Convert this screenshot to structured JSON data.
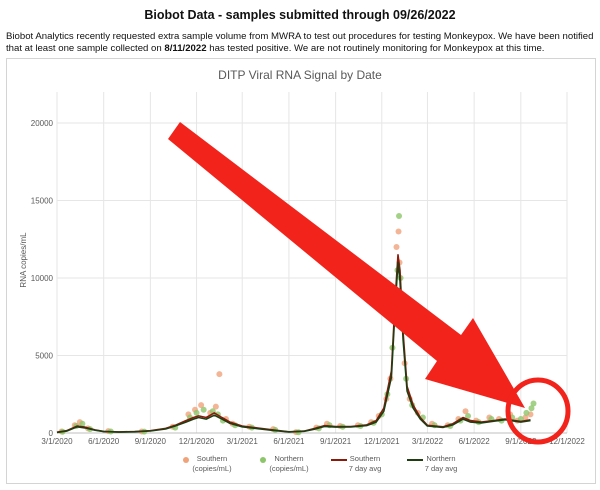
{
  "page": {
    "title": "Biobot Data - samples submitted through 09/26/2022",
    "desc_part1": "Biobot Analytics recently requested extra sample volume from MWRA to test out procedures for testing Monkeypox. We have been notified that at least one sample collected on ",
    "desc_date": "8/11/2022",
    "desc_part2": " has tested positive. We are not routinely monitoring for Monkeypox at this time."
  },
  "colors": {
    "southern_points": "#f0a27a",
    "northern_points": "#8cc56a",
    "southern_avg": "#8b1a0a",
    "northern_avg": "#1e3d12",
    "annotation": "#f2231b",
    "grid": "#e6e6e6",
    "axis_text": "#595959"
  },
  "chart_data": {
    "type": "scatter",
    "title": "DITP Viral RNA Signal by Date",
    "xlabel": "",
    "ylabel": "RNA copies/mL",
    "ylim": [
      0,
      22000
    ],
    "yticks": [
      0,
      5000,
      10000,
      15000,
      20000
    ],
    "ytick_labels": [
      "0",
      "5000",
      "10000",
      "15000",
      "20000"
    ],
    "xlim": [
      "2020-03-01",
      "2022-12-01"
    ],
    "xticks": [
      "2020-03-01",
      "2020-06-01",
      "2020-09-01",
      "2020-12-01",
      "2021-03-01",
      "2021-06-01",
      "2021-09-01",
      "2021-12-01",
      "2022-03-01",
      "2022-06-01",
      "2022-09-01",
      "2022-12-01"
    ],
    "xtick_labels": [
      "3/1/2020",
      "6/1/2020",
      "9/1/2020",
      "12/1/2020",
      "3/1/2021",
      "6/1/2021",
      "9/1/2021",
      "12/1/2021",
      "3/1/2022",
      "6/1/2022",
      "9/1/2022",
      "12/1/2022"
    ],
    "grid": true,
    "legend_position": "bottom",
    "legend": [
      {
        "line1": "Southern",
        "line2": "(copies/mL)",
        "kind": "dot",
        "color_key": "southern_points"
      },
      {
        "line1": "Northern",
        "line2": "(copies/mL)",
        "kind": "dot",
        "color_key": "northern_points"
      },
      {
        "line1": "Southern",
        "line2": "7 day avg",
        "kind": "line",
        "color_key": "southern_avg"
      },
      {
        "line1": "Northern",
        "line2": "7 day avg",
        "kind": "line",
        "color_key": "northern_avg"
      }
    ],
    "series": [
      {
        "name": "Southern 7 day avg",
        "kind": "line",
        "x": [
          "2020-03-01",
          "2020-03-20",
          "2020-04-10",
          "2020-04-25",
          "2020-05-15",
          "2020-06-01",
          "2020-07-01",
          "2020-08-01",
          "2020-09-01",
          "2020-10-01",
          "2020-10-20",
          "2020-11-10",
          "2020-11-25",
          "2020-12-05",
          "2020-12-20",
          "2021-01-05",
          "2021-01-20",
          "2021-02-05",
          "2021-03-01",
          "2021-04-01",
          "2021-05-01",
          "2021-06-01",
          "2021-07-01",
          "2021-07-20",
          "2021-08-10",
          "2021-09-01",
          "2021-10-01",
          "2021-11-01",
          "2021-11-20",
          "2021-12-05",
          "2021-12-20",
          "2021-12-28",
          "2022-01-02",
          "2022-01-06",
          "2022-01-12",
          "2022-01-20",
          "2022-02-01",
          "2022-02-15",
          "2022-03-01",
          "2022-04-01",
          "2022-04-20",
          "2022-05-10",
          "2022-05-25",
          "2022-06-15",
          "2022-07-10",
          "2022-08-01",
          "2022-09-01",
          "2022-09-20"
        ],
        "y": [
          50,
          150,
          450,
          380,
          200,
          100,
          70,
          90,
          150,
          300,
          500,
          800,
          1000,
          1100,
          1000,
          1300,
          1000,
          700,
          450,
          320,
          200,
          80,
          120,
          280,
          480,
          420,
          420,
          520,
          800,
          1600,
          4000,
          9000,
          11500,
          10500,
          6500,
          3000,
          1800,
          1000,
          500,
          400,
          600,
          1000,
          800,
          700,
          800,
          900,
          750,
          850
        ]
      },
      {
        "name": "Northern 7 day avg",
        "kind": "line",
        "x": [
          "2020-03-01",
          "2020-03-20",
          "2020-04-10",
          "2020-04-25",
          "2020-05-15",
          "2020-06-01",
          "2020-07-01",
          "2020-08-01",
          "2020-09-01",
          "2020-10-01",
          "2020-10-20",
          "2020-11-10",
          "2020-11-25",
          "2020-12-05",
          "2020-12-20",
          "2021-01-05",
          "2021-01-20",
          "2021-02-05",
          "2021-03-01",
          "2021-04-01",
          "2021-05-01",
          "2021-06-01",
          "2021-07-01",
          "2021-07-20",
          "2021-08-10",
          "2021-09-01",
          "2021-10-01",
          "2021-11-01",
          "2021-11-20",
          "2021-12-05",
          "2021-12-20",
          "2021-12-28",
          "2022-01-02",
          "2022-01-06",
          "2022-01-12",
          "2022-01-20",
          "2022-02-01",
          "2022-02-15",
          "2022-03-01",
          "2022-04-01",
          "2022-04-20",
          "2022-05-10",
          "2022-05-25",
          "2022-06-15",
          "2022-07-10",
          "2022-08-01",
          "2022-09-01",
          "2022-09-20"
        ],
        "y": [
          40,
          120,
          400,
          330,
          180,
          90,
          60,
          80,
          130,
          260,
          450,
          700,
          900,
          1000,
          900,
          1150,
          900,
          620,
          400,
          280,
          170,
          70,
          110,
          240,
          420,
          380,
          390,
          480,
          700,
          1400,
          3600,
          8500,
          11000,
          9800,
          6000,
          2700,
          1600,
          900,
          450,
          360,
          520,
          900,
          700,
          650,
          760,
          860,
          700,
          800
        ]
      },
      {
        "name": "Southern (copies/mL)",
        "kind": "points",
        "x": [
          "2020-03-10",
          "2020-04-05",
          "2020-04-15",
          "2020-05-01",
          "2020-06-10",
          "2020-08-15",
          "2020-10-15",
          "2020-11-15",
          "2020-11-28",
          "2020-12-10",
          "2020-12-28",
          "2021-01-08",
          "2021-01-15",
          "2021-01-28",
          "2021-02-10",
          "2021-03-15",
          "2021-05-01",
          "2021-06-15",
          "2021-07-25",
          "2021-08-15",
          "2021-09-10",
          "2021-10-15",
          "2021-11-10",
          "2021-11-25",
          "2021-12-10",
          "2021-12-18",
          "2021-12-24",
          "2021-12-30",
          "2022-01-03",
          "2022-01-05",
          "2022-01-09",
          "2022-01-15",
          "2022-01-25",
          "2022-02-10",
          "2022-03-10",
          "2022-04-10",
          "2022-05-01",
          "2022-05-15",
          "2022-06-05",
          "2022-07-01",
          "2022-07-20",
          "2022-08-11",
          "2022-08-25",
          "2022-09-10",
          "2022-09-20"
        ],
        "y": [
          100,
          500,
          700,
          300,
          120,
          100,
          400,
          1200,
          1500,
          1800,
          1300,
          1700,
          3800,
          900,
          600,
          400,
          250,
          60,
          350,
          600,
          450,
          500,
          700,
          1100,
          2200,
          3500,
          7500,
          12000,
          13000,
          11000,
          8500,
          4500,
          2200,
          1300,
          600,
          500,
          900,
          1400,
          800,
          1000,
          900,
          1200,
          800,
          1000,
          1200
        ]
      },
      {
        "name": "Northern (copies/mL)",
        "kind": "points",
        "x": [
          "2020-03-12",
          "2020-04-08",
          "2020-04-20",
          "2020-05-05",
          "2020-06-15",
          "2020-08-20",
          "2020-10-20",
          "2020-11-18",
          "2020-12-01",
          "2020-12-15",
          "2021-01-02",
          "2021-01-12",
          "2021-01-22",
          "2021-02-15",
          "2021-03-20",
          "2021-05-05",
          "2021-06-20",
          "2021-07-30",
          "2021-08-20",
          "2021-09-15",
          "2021-10-20",
          "2021-11-15",
          "2021-12-01",
          "2021-12-12",
          "2021-12-22",
          "2021-12-27",
          "2022-01-01",
          "2022-01-04",
          "2022-01-07",
          "2022-01-11",
          "2022-01-18",
          "2022-01-30",
          "2022-02-20",
          "2022-03-15",
          "2022-04-15",
          "2022-05-05",
          "2022-05-20",
          "2022-06-10",
          "2022-07-05",
          "2022-07-25",
          "2022-08-15",
          "2022-09-01",
          "2022-09-12",
          "2022-09-22",
          "2022-09-26"
        ],
        "y": [
          80,
          450,
          600,
          250,
          100,
          90,
          350,
          1000,
          1300,
          1500,
          1400,
          1200,
          800,
          500,
          350,
          200,
          50,
          300,
          500,
          400,
          450,
          650,
          1200,
          2500,
          5500,
          9000,
          10500,
          14000,
          10000,
          7000,
          3500,
          1800,
          1000,
          500,
          450,
          800,
          1100,
          700,
          900,
          800,
          1000,
          900,
          1300,
          1600,
          1900
        ]
      }
    ]
  }
}
